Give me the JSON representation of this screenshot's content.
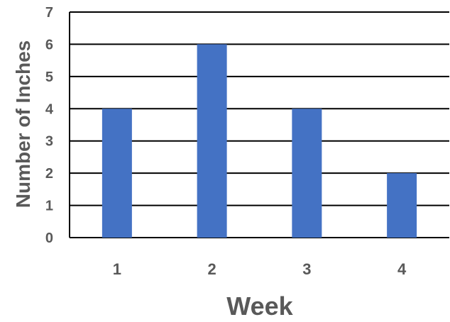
{
  "chart_data": {
    "type": "bar",
    "title": "",
    "xlabel": "Week",
    "ylabel": "Number of Inches",
    "categories": [
      "1",
      "2",
      "3",
      "4"
    ],
    "values": [
      4,
      6,
      4,
      2
    ],
    "ylim": [
      0,
      7
    ],
    "yticks": [
      0,
      1,
      2,
      3,
      4,
      5,
      6,
      7
    ],
    "grid": true,
    "legend": "none",
    "bar_color": "#4472C4",
    "gridline_color": "#000000",
    "text_color": "#595959"
  }
}
